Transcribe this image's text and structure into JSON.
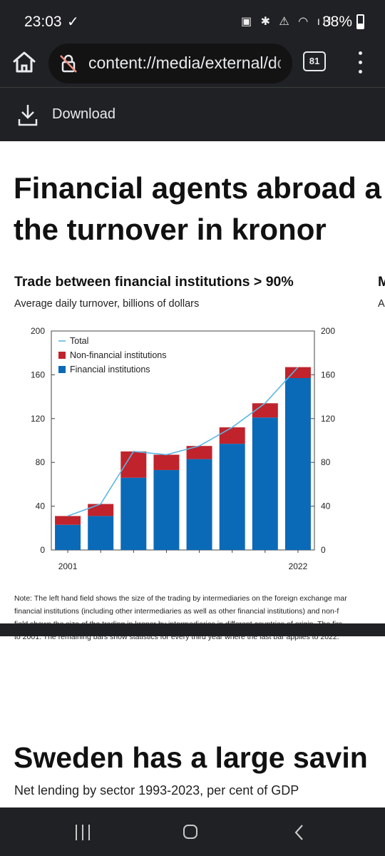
{
  "status_bar": {
    "time": "23:03",
    "check": "✓",
    "icons": "▣ ✱ ⚠ ◠ ıll",
    "battery": "38%"
  },
  "browser": {
    "url": "content://media/external/dow",
    "tab_count": "81",
    "download_label": "Download"
  },
  "document": {
    "heading_line1": "Financial agents abroad a",
    "heading_line2": "the turnover in kronor",
    "chart_title": "Trade between financial institutions > 90%",
    "chart_subtitle": "Average daily turnover, billions of dollars",
    "right_chart_title_cut": "M",
    "right_chart_subtitle_cut": "A",
    "note_lines": [
      "Note: The left hand field shows the size of the trading by intermediaries on the foreign exchange mar",
      "financial institutions (including other intermediaries as well as other financial institutions) and non-f",
      "field shows the size of the trading in kronor by intermediaries in different countries of origin. The firs",
      "to 2001. The remaining bars show statistics for every third year where the last bar applies to 2022."
    ],
    "heading2": "Sweden has a large savin",
    "heading2_sub": "Net lending by sector 1993-2023, per cent of GDP"
  },
  "chart_data": {
    "type": "bar",
    "stacked": true,
    "categories": [
      "2001",
      "",
      "",
      "",
      "",
      "",
      "",
      "2022"
    ],
    "series": [
      {
        "name": "Financial institutions",
        "color": "#0a6ab8",
        "values": [
          23,
          31,
          66,
          73,
          83,
          97,
          121,
          157
        ]
      },
      {
        "name": "Non-financial institutions",
        "color": "#c0232c",
        "values": [
          8,
          11,
          24,
          14,
          12,
          15,
          13,
          10
        ]
      },
      {
        "name": "Total",
        "type": "line",
        "color": "#5bb6e3",
        "values": [
          31,
          42,
          90,
          87,
          95,
          112,
          134,
          167
        ]
      }
    ],
    "x_tick_labels": [
      "2001",
      "2022"
    ],
    "y_ticks": [
      "0",
      "40",
      "80",
      "120",
      "160",
      "200"
    ],
    "ylim": [
      0,
      200
    ],
    "legend_position": "top-left",
    "grid": false
  },
  "colors": {
    "browser_chrome": "#202124",
    "financial": "#0a6ab8",
    "non_financial": "#c0232c",
    "total_line": "#5bb6e3"
  },
  "nav": {
    "icons": [
      "recents-icon",
      "home-icon",
      "back-icon"
    ]
  }
}
